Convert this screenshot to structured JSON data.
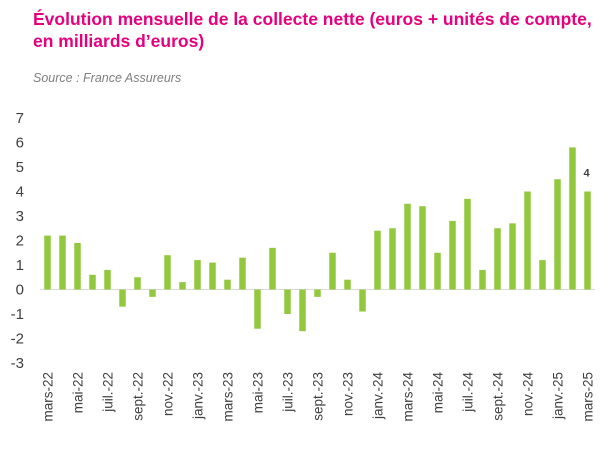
{
  "header": {
    "title_line1": "Évolution mensuelle de la collecte nette (euros + unités de compte,",
    "title_line2": "en milliards d’euros)",
    "source": "Source : France Assureurs"
  },
  "chart_data": {
    "type": "bar",
    "title": "Évolution mensuelle de la collecte nette (euros + unités de compte, en milliards d’euros)",
    "xlabel": "",
    "ylabel": "",
    "ylim": [
      -3,
      7
    ],
    "yticks": [
      7,
      6,
      5,
      4,
      3,
      2,
      1,
      0,
      -1,
      -2,
      -3
    ],
    "bar_color": "#92c83e",
    "tick_labels": [
      "mars-22",
      "mai-22",
      "juil.-22",
      "sept.-22",
      "nov.-22",
      "janv.-23",
      "mars-23",
      "mai-23",
      "juil.-23",
      "sept.-23",
      "nov.-23",
      "janv.-24",
      "mars-24",
      "mai-24",
      "juil.-24",
      "sept.-24",
      "nov.-24",
      "janv.-25",
      "mars-25"
    ],
    "categories": [
      "mars-22",
      "avr.-22",
      "mai-22",
      "juin-22",
      "juil.-22",
      "août-22",
      "sept.-22",
      "oct.-22",
      "nov.-22",
      "déc.-22",
      "janv.-23",
      "févr.-23",
      "mars-23",
      "avr.-23",
      "mai-23",
      "juin-23",
      "juil.-23",
      "août-23",
      "sept.-23",
      "oct.-23",
      "nov.-23",
      "déc.-23",
      "janv.-24",
      "févr.-24",
      "mars-24",
      "avr.-24",
      "mai-24",
      "juin-24",
      "juil.-24",
      "août-24",
      "sept.-24",
      "oct.-24",
      "nov.-24",
      "déc.-24",
      "janv.-25",
      "févr.-25",
      "mars-25"
    ],
    "values": [
      2.2,
      2.2,
      1.9,
      0.6,
      0.8,
      -0.7,
      0.5,
      -0.3,
      1.4,
      0.3,
      1.2,
      1.1,
      0.4,
      1.3,
      -1.6,
      1.7,
      -1.0,
      -1.7,
      -0.3,
      1.5,
      0.4,
      -0.9,
      2.4,
      2.5,
      3.5,
      3.4,
      1.5,
      2.8,
      3.7,
      0.8,
      2.5,
      2.7,
      4.0,
      1.2,
      4.5,
      5.8,
      4.0
    ],
    "annotations": [
      {
        "category": "mars-25",
        "text": "4"
      }
    ]
  }
}
